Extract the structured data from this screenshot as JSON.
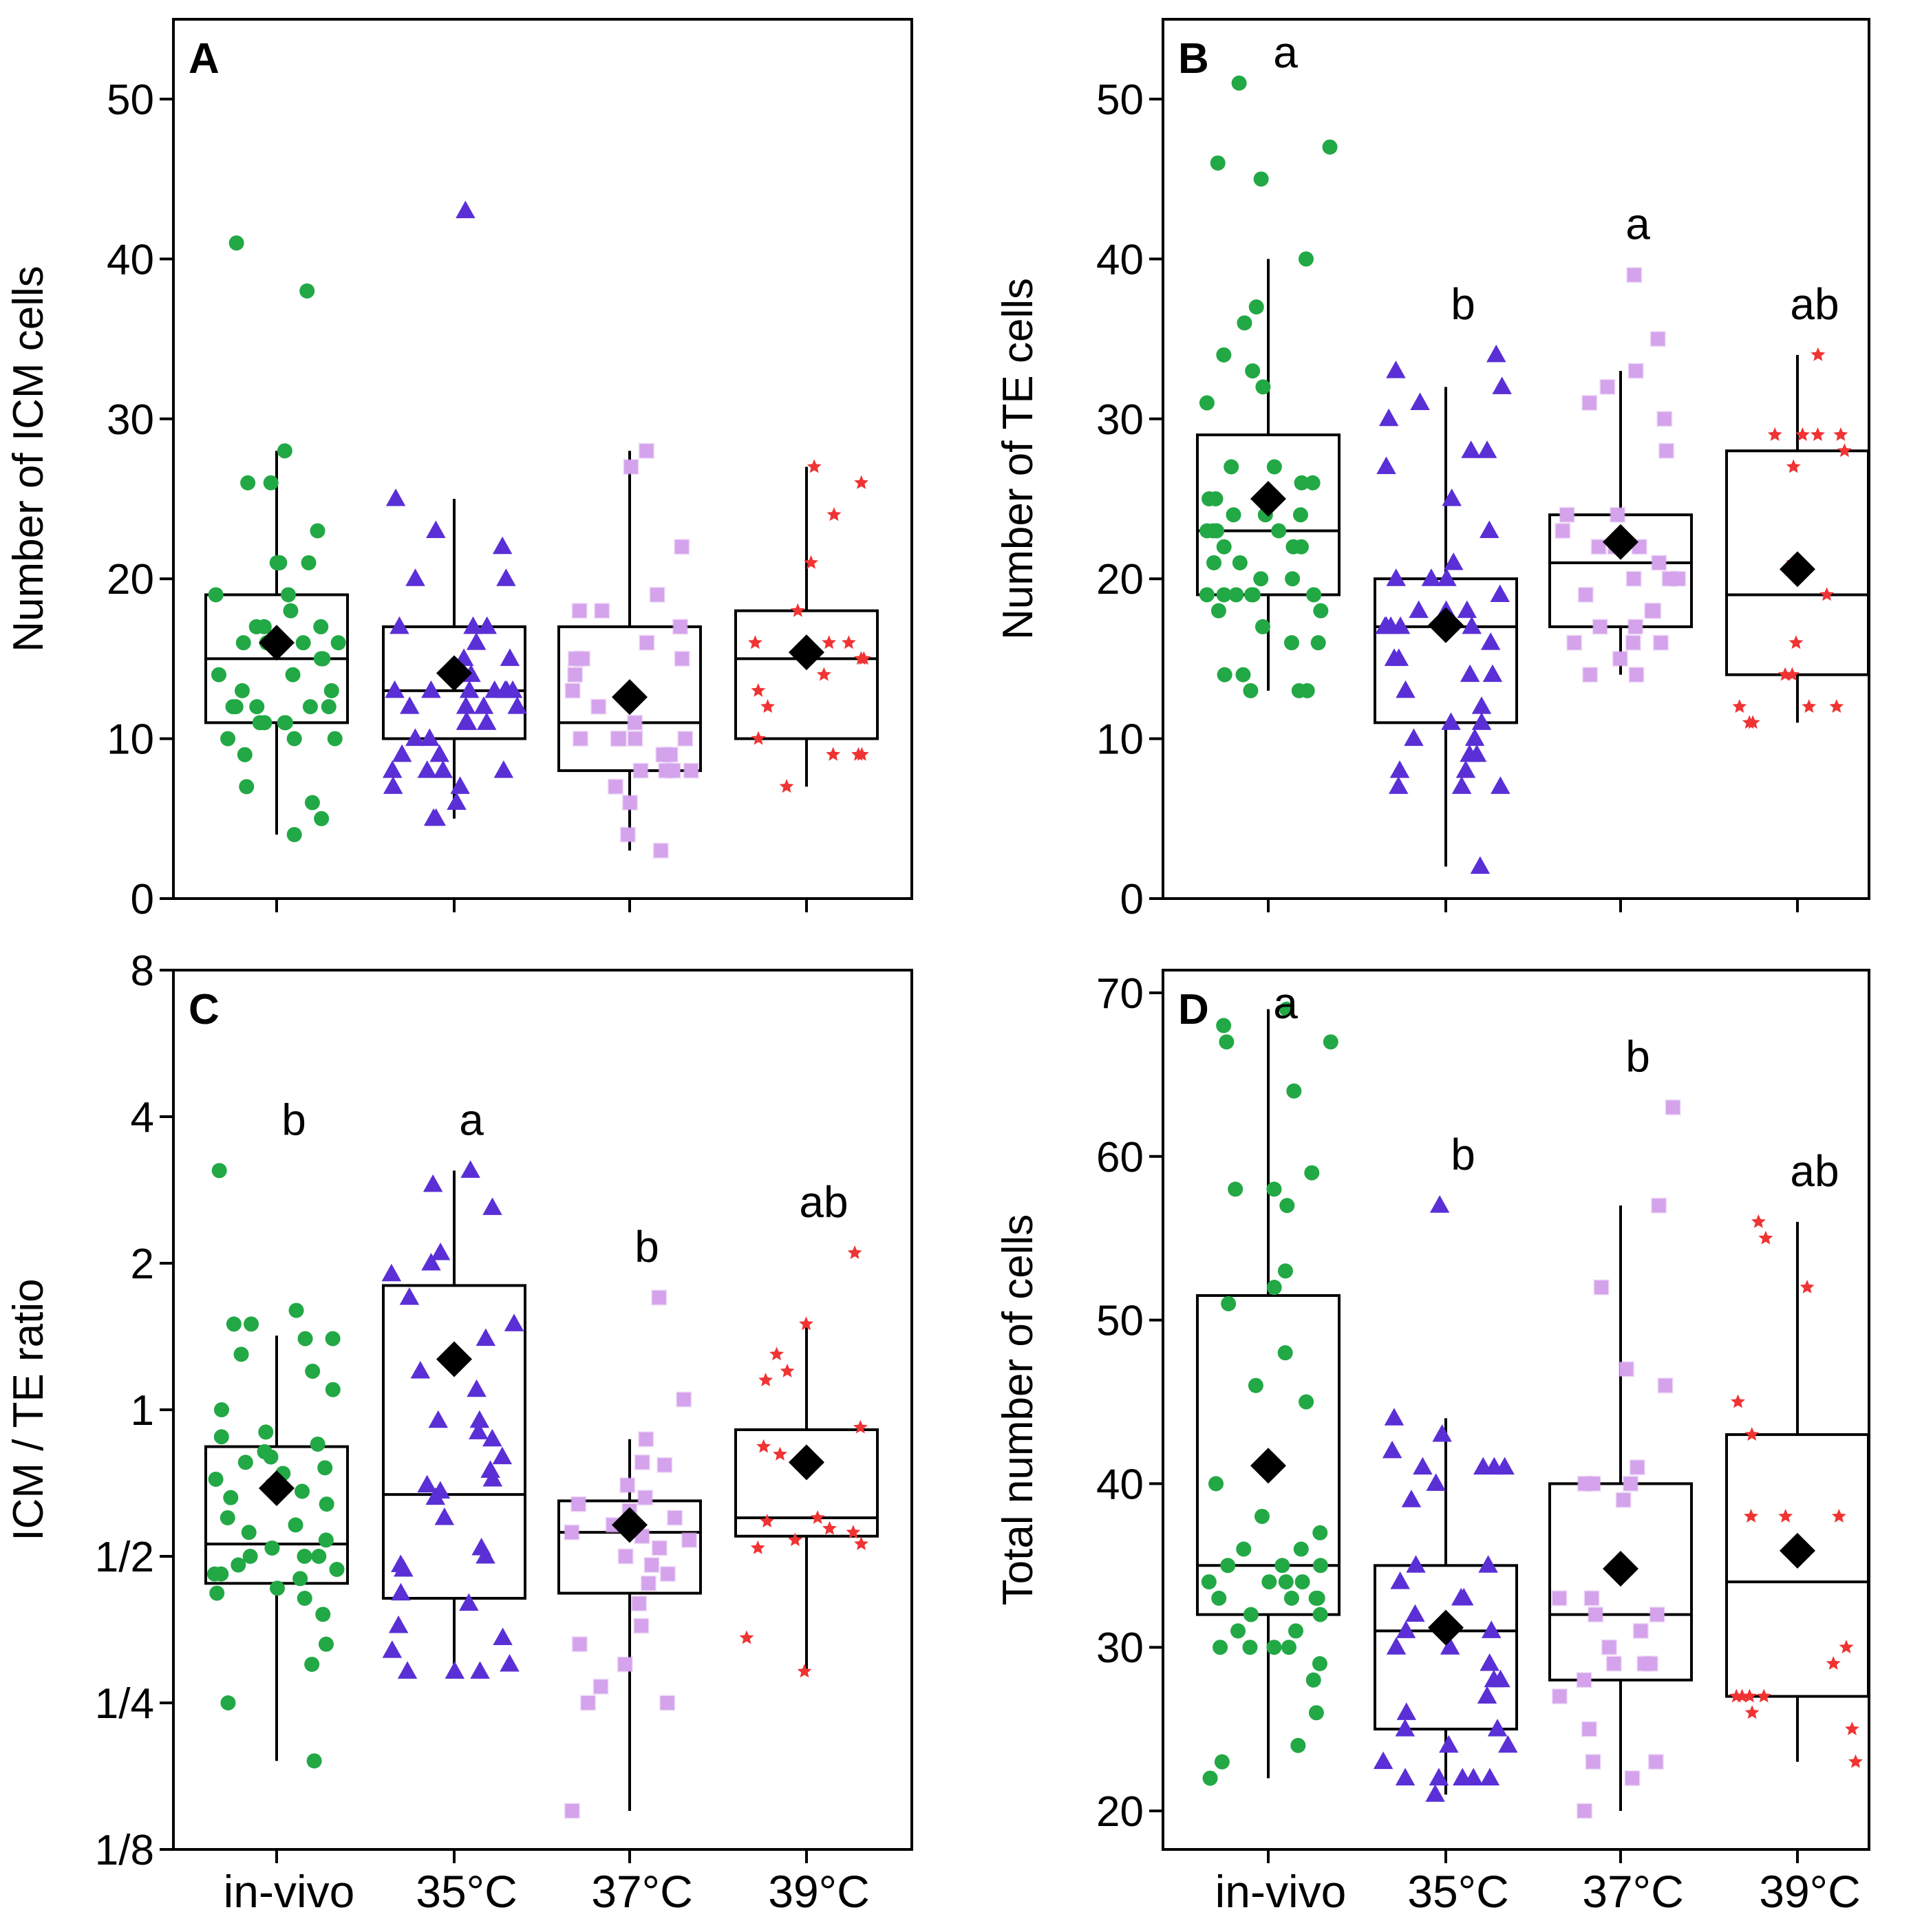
{
  "figure": {
    "colors": {
      "in-vivo": "#22a845",
      "35C": "#5a2fd6",
      "37C": "#d4a3ec",
      "39C": "#f03333",
      "mean": "#000000",
      "frame": "#000000"
    },
    "markers": {
      "in-vivo": "circle",
      "35C": "triangle",
      "37C": "square",
      "39C": "star"
    }
  },
  "chart_data": [
    {
      "panel": "A",
      "type": "box",
      "ylabel": "Number of ICM cells",
      "yscale": "linear",
      "ylim": [
        0,
        55
      ],
      "yticks": [
        0,
        10,
        20,
        30,
        40,
        50
      ],
      "ytick_labels": [
        "0",
        "10",
        "20",
        "30",
        "40",
        "50"
      ],
      "categories": [
        "in-vivo",
        "35°C",
        "37°C",
        "39°C"
      ],
      "series_keys": [
        "in-vivo",
        "35C",
        "37C",
        "39C"
      ],
      "show_xtick_labels": false,
      "boxes": [
        {
          "q1": 11,
          "median": 15,
          "q3": 19,
          "whisker_low": 4,
          "whisker_high": 28,
          "mean": 16.0
        },
        {
          "q1": 10,
          "median": 13,
          "q3": 17,
          "whisker_low": 5,
          "whisker_high": 25,
          "mean": 14.1
        },
        {
          "q1": 8,
          "median": 11,
          "q3": 17,
          "whisker_low": 3,
          "whisker_high": 28,
          "mean": 12.6
        },
        {
          "q1": 10,
          "median": 15,
          "q3": 18,
          "whisker_low": 7,
          "whisker_high": 27,
          "mean": 15.4
        }
      ],
      "points": [
        [
          41,
          38,
          28,
          26,
          26,
          23,
          21,
          21,
          21,
          21,
          19,
          19,
          18,
          17,
          17,
          17,
          16,
          16,
          16,
          16,
          15,
          15,
          14,
          14,
          13,
          13,
          12,
          12,
          12,
          12,
          12,
          11,
          11,
          11,
          11,
          10,
          10,
          10,
          9,
          7,
          6,
          5,
          4
        ],
        [
          43,
          25,
          23,
          22,
          20,
          20,
          17,
          17,
          17,
          16,
          15,
          15,
          14,
          14,
          13,
          13,
          13,
          13,
          13,
          13,
          13,
          12,
          12,
          12,
          12,
          11,
          11,
          11,
          10,
          10,
          9,
          9,
          8,
          8,
          8,
          8,
          7,
          7,
          6,
          5,
          5
        ],
        [
          28,
          27,
          22,
          19,
          18,
          18,
          17,
          16,
          15,
          15,
          15,
          14,
          13,
          12,
          11,
          10,
          10,
          10,
          10,
          10,
          9,
          9,
          8,
          8,
          8,
          8,
          7,
          6,
          4,
          3
        ],
        [
          27,
          26,
          24,
          21,
          18,
          16,
          16,
          16,
          15,
          15,
          14,
          13,
          12,
          10,
          9,
          9,
          9,
          7
        ]
      ],
      "letters": [
        "",
        "",
        "",
        ""
      ]
    },
    {
      "panel": "B",
      "type": "box",
      "ylabel": "Number of TE cells",
      "yscale": "linear",
      "ylim": [
        0,
        55
      ],
      "yticks": [
        0,
        10,
        20,
        30,
        40,
        50
      ],
      "ytick_labels": [
        "0",
        "10",
        "20",
        "30",
        "40",
        "50"
      ],
      "categories": [
        "in-vivo",
        "35°C",
        "37°C",
        "39°C"
      ],
      "series_keys": [
        "in-vivo",
        "35C",
        "37C",
        "39C"
      ],
      "show_xtick_labels": false,
      "boxes": [
        {
          "q1": 19,
          "median": 23,
          "q3": 29,
          "whisker_low": 13,
          "whisker_high": 40,
          "mean": 25.0
        },
        {
          "q1": 11,
          "median": 17,
          "q3": 20,
          "whisker_low": 2,
          "whisker_high": 32,
          "mean": 17.1
        },
        {
          "q1": 17,
          "median": 21,
          "q3": 24,
          "whisker_low": 14,
          "whisker_high": 33,
          "mean": 22.3
        },
        {
          "q1": 14,
          "median": 19,
          "q3": 28,
          "whisker_low": 11,
          "whisker_high": 34,
          "mean": 20.6
        }
      ],
      "points": [
        [
          51,
          47,
          46,
          45,
          40,
          37,
          36,
          34,
          33,
          32,
          31,
          27,
          27,
          26,
          26,
          25,
          25,
          24,
          24,
          24,
          23,
          23,
          23,
          23,
          22,
          22,
          22,
          21,
          21,
          20,
          20,
          19,
          19,
          19,
          19,
          19,
          19,
          18,
          18,
          17,
          16,
          16,
          14,
          14,
          13,
          13,
          13
        ],
        [
          34,
          33,
          32,
          31,
          30,
          28,
          28,
          27,
          25,
          23,
          21,
          20,
          20,
          20,
          19,
          18,
          18,
          18,
          17,
          17,
          17,
          17,
          17,
          16,
          15,
          15,
          14,
          14,
          13,
          12,
          11,
          11,
          10,
          10,
          9,
          9,
          8,
          8,
          7,
          7,
          7,
          2
        ],
        [
          39,
          35,
          33,
          32,
          31,
          30,
          28,
          24,
          24,
          23,
          22,
          22,
          22,
          21,
          20,
          20,
          20,
          19,
          18,
          18,
          17,
          17,
          16,
          16,
          16,
          15,
          14,
          14
        ],
        [
          34,
          29,
          29,
          29,
          29,
          28,
          27,
          21,
          19,
          16,
          14,
          14,
          12,
          12,
          12,
          11,
          11
        ]
      ],
      "letters": [
        "a",
        "b",
        "a",
        "ab"
      ]
    },
    {
      "panel": "C",
      "type": "box",
      "ylabel": "ICM / TE ratio",
      "yscale": "log2",
      "ylim": [
        0.125,
        8
      ],
      "yticks": [
        0.125,
        0.25,
        0.5,
        1,
        2,
        4,
        8
      ],
      "ytick_labels": [
        "1/8",
        "1/4",
        "1/2",
        "1",
        "2",
        "4",
        "8"
      ],
      "categories": [
        "in-vivo",
        "35°C",
        "37°C",
        "39°C"
      ],
      "series_keys": [
        "in-vivo",
        "35C",
        "37C",
        "39C"
      ],
      "show_xtick_labels": true,
      "boxes": [
        {
          "q1": 0.44,
          "median": 0.53,
          "q3": 0.84,
          "whisker_low": 0.19,
          "whisker_high": 1.42,
          "mean": 0.69
        },
        {
          "q1": 0.41,
          "median": 0.67,
          "q3": 1.8,
          "whisker_low": 0.29,
          "whisker_high": 3.1,
          "mean": 1.27
        },
        {
          "q1": 0.42,
          "median": 0.56,
          "q3": 0.65,
          "whisker_low": 0.15,
          "whisker_high": 0.87,
          "mean": 0.58
        },
        {
          "q1": 0.55,
          "median": 0.6,
          "q3": 0.91,
          "whisker_low": 0.29,
          "whisker_high": 1.5,
          "mean": 0.78
        }
      ],
      "points": [
        [
          3.1,
          1.6,
          1.5,
          1.5,
          1.4,
          1.4,
          1.3,
          1.2,
          1.1,
          1.0,
          0.9,
          0.88,
          0.85,
          0.82,
          0.8,
          0.78,
          0.76,
          0.74,
          0.72,
          0.7,
          0.68,
          0.66,
          0.64,
          0.6,
          0.58,
          0.56,
          0.54,
          0.52,
          0.5,
          0.5,
          0.5,
          0.48,
          0.47,
          0.46,
          0.46,
          0.45,
          0.43,
          0.42,
          0.41,
          0.38,
          0.33,
          0.3,
          0.25,
          0.19
        ],
        [
          3.1,
          2.9,
          2.6,
          2.1,
          2.0,
          1.9,
          1.7,
          1.5,
          1.4,
          1.2,
          1.1,
          0.95,
          0.95,
          0.9,
          0.87,
          0.8,
          0.75,
          0.72,
          0.7,
          0.68,
          0.66,
          0.6,
          0.52,
          0.5,
          0.48,
          0.47,
          0.42,
          0.4,
          0.36,
          0.34,
          0.32,
          0.3,
          0.29,
          0.29,
          0.29
        ],
        [
          1.7,
          1.05,
          0.87,
          0.78,
          0.77,
          0.7,
          0.66,
          0.64,
          0.62,
          0.6,
          0.58,
          0.56,
          0.55,
          0.54,
          0.52,
          0.5,
          0.48,
          0.46,
          0.44,
          0.4,
          0.36,
          0.33,
          0.3,
          0.27,
          0.25,
          0.25,
          0.15
        ],
        [
          2.1,
          1.5,
          1.3,
          1.2,
          1.15,
          0.92,
          0.84,
          0.81,
          0.6,
          0.59,
          0.57,
          0.56,
          0.54,
          0.53,
          0.52,
          0.34,
          0.29
        ]
      ],
      "letters": [
        "b",
        "a",
        "b",
        "ab"
      ]
    },
    {
      "panel": "D",
      "type": "box",
      "ylabel": "Total number of cells",
      "yscale": "linear",
      "ylim": [
        17.5,
        71.5
      ],
      "yticks": [
        20,
        30,
        40,
        50,
        60,
        70
      ],
      "ytick_labels": [
        "20",
        "30",
        "40",
        "50",
        "60",
        "70"
      ],
      "categories": [
        "in-vivo",
        "35°C",
        "37°C",
        "39°C"
      ],
      "series_keys": [
        "in-vivo",
        "35C",
        "37C",
        "39C"
      ],
      "show_xtick_labels": true,
      "boxes": [
        {
          "q1": 32,
          "median": 35,
          "q3": 51.5,
          "whisker_low": 22,
          "whisker_high": 69,
          "mean": 41.1
        },
        {
          "q1": 25,
          "median": 31,
          "q3": 35,
          "whisker_low": 21,
          "whisker_high": 44,
          "mean": 31.2
        },
        {
          "q1": 28,
          "median": 32,
          "q3": 40,
          "whisker_low": 20,
          "whisker_high": 57,
          "mean": 34.8
        },
        {
          "q1": 27,
          "median": 34,
          "q3": 43,
          "whisker_low": 23,
          "whisker_high": 56,
          "mean": 35.9
        }
      ],
      "points": [
        [
          69,
          68,
          67,
          67,
          64,
          59,
          58,
          58,
          57,
          53,
          52,
          51,
          48,
          46,
          45,
          40,
          38,
          37,
          36,
          36,
          35,
          35,
          35,
          34,
          34,
          34,
          34,
          33,
          33,
          33,
          33,
          32,
          32,
          31,
          31,
          30,
          30,
          30,
          30,
          29,
          28,
          26,
          24,
          23,
          22
        ],
        [
          57,
          44,
          43,
          42,
          41,
          41,
          41,
          41,
          40,
          39,
          35,
          35,
          34,
          33,
          33,
          32,
          31,
          31,
          30,
          30,
          29,
          28,
          28,
          27,
          26,
          25,
          25,
          24,
          24,
          23,
          22,
          22,
          22,
          22,
          22,
          21
        ],
        [
          63,
          57,
          52,
          47,
          46,
          41,
          40,
          40,
          40,
          39,
          33,
          33,
          32,
          32,
          31,
          30,
          29,
          29,
          29,
          28,
          27,
          25,
          23,
          23,
          22,
          20
        ],
        [
          56,
          55,
          52,
          45,
          43,
          38,
          38,
          38,
          30,
          29,
          27,
          27,
          27,
          27,
          26,
          25,
          23
        ]
      ],
      "letters": [
        "a",
        "b",
        "b",
        "ab"
      ]
    }
  ]
}
